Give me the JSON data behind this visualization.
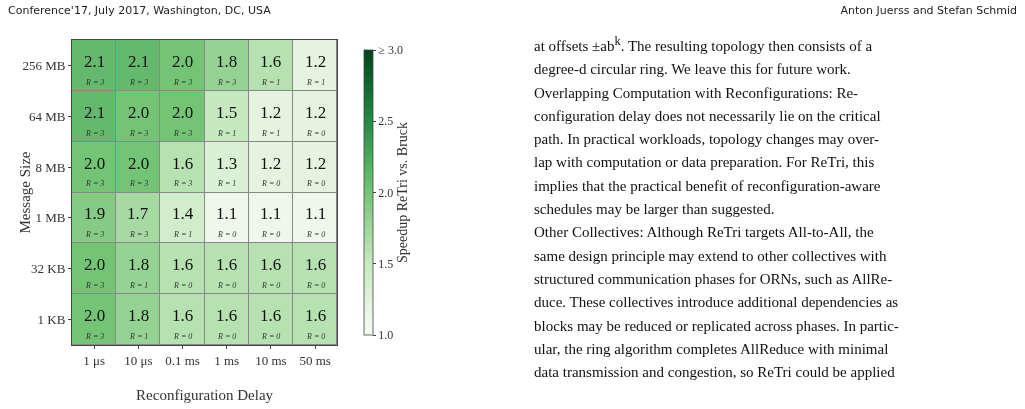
{
  "chart_data": {
    "type": "heatmap",
    "xlabel": "Reconfiguration Delay",
    "ylabel": "Message Size",
    "clabel": "Speedup ReTri vs. Bruck",
    "categories": [
      "1 μs",
      "10 μs",
      "0.1 ms",
      "1 ms",
      "10 ms",
      "50 ms"
    ],
    "y_categories": [
      "256 MB",
      "64 MB",
      "8 MB",
      "1 MB",
      "32 KB",
      "1 KB"
    ],
    "cells": [
      [
        2.1,
        2.1,
        2.0,
        1.8,
        1.6,
        1.2
      ],
      [
        2.1,
        2.0,
        2.0,
        1.5,
        1.2,
        1.2
      ],
      [
        2.0,
        2.0,
        1.6,
        1.3,
        1.2,
        1.2
      ],
      [
        1.9,
        1.7,
        1.4,
        1.1,
        1.1,
        1.1
      ],
      [
        2.0,
        1.8,
        1.6,
        1.6,
        1.6,
        1.6
      ],
      [
        2.0,
        1.8,
        1.6,
        1.6,
        1.6,
        1.6
      ]
    ],
    "cell_labels": [
      [
        "2.1\nR = 3",
        "2.1\nR = 3",
        "2.0\nR = 3",
        "1.8\nR = 3",
        "1.6\nR = 1",
        "1.2\nR = 1"
      ],
      [
        "2.1\nR = 3",
        "2.0\nR = 3",
        "2.0\nR = 3",
        "1.5\nR = 1",
        "1.2\nR = 1",
        "1.2\nR = 0"
      ],
      [
        "2.0\nR = 3",
        "2.0\nR = 3",
        "1.6\nR = 3",
        "1.3\nR = 1",
        "1.2\nR = 0",
        "1.2\nR = 0"
      ],
      [
        "1.9\nR = 3",
        "1.7\nR = 3",
        "1.4\nR = 1",
        "1.1\nR = 0",
        "1.1\nR = 0",
        "1.1\nR = 0"
      ],
      [
        "2.0\nR = 3",
        "1.8\nR = 1",
        "1.6\nR = 0",
        "1.6\nR = 0",
        "1.6\nR = 0",
        "1.6\nR = 0"
      ],
      [
        "2.0\nR = 3",
        "1.8\nR = 1",
        "1.6\nR = 0",
        "1.6\nR = 0",
        "1.6\nR = 0",
        "1.6\nR = 0"
      ]
    ],
    "clim": [
      1.0,
      3.0
    ],
    "cticks": [
      {
        "value": 1.0,
        "label": "1.0"
      },
      {
        "value": 1.5,
        "label": "1.5"
      },
      {
        "value": 2.0,
        "label": "2.0"
      },
      {
        "value": 2.5,
        "label": "2.5"
      },
      {
        "value": 3.0,
        "label": "≥ 3.0"
      }
    ],
    "annotations": [
      "Conference'17, July 2017, Washington, DC, USA",
      "Anton Juerss and Stefan Schmid",
      "at offsets ±ab$^{k}$. The resulting topology then consists of a",
      "degree-d circular ring. We leave this for future work.",
      "Overlapping Computation with Reconfigurations: Re-",
      "configuration delay does not necessarily lie on the critical",
      "path. In practical workloads, topology changes may over-",
      "lap with computation or data preparation. For ReTri, this",
      "implies that the practical benefit of reconfiguration-aware",
      "schedules may be larger than suggested.",
      "Other Collectives: Although ReTri targets All-to-All, the",
      "same design principle may extend to other collectives with",
      "structured communication phases for ORNs, such as AllRe-",
      "duce. These collectives introduce additional dependencies as",
      "blocks may be reduced or replicated across phases. In partic-",
      "ular, the ring algorithm completes AllReduce with minimal",
      "data transmission and congestion, so ReTri could be applied"
    ]
  }
}
